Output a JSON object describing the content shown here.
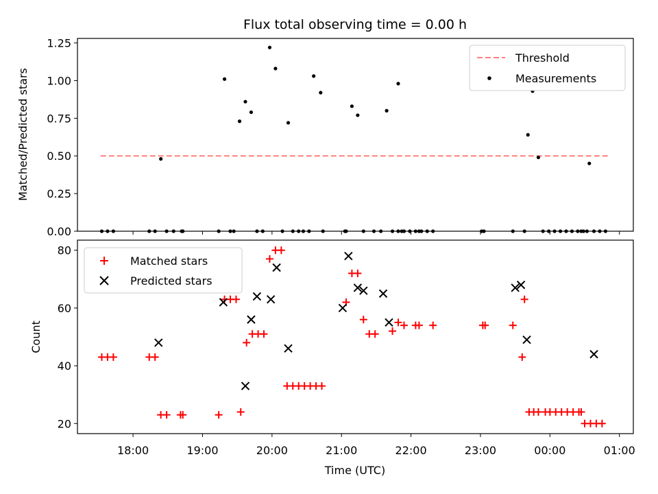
{
  "chart_data": [
    {
      "type": "scatter",
      "title": "Flux total observing time = 0.00 h",
      "xlabel": "",
      "ylabel": "Matched/Predicted stars",
      "xlim": [
        "17:12",
        "01:12"
      ],
      "ylim": [
        0,
        1.28
      ],
      "yticks": [
        "0.00",
        "0.25",
        "0.50",
        "0.75",
        "1.00",
        "1.25"
      ],
      "legend_position": "top-right",
      "series": [
        {
          "name": "Threshold",
          "style": "dashed-line",
          "color": "#ff7f7f",
          "x": [
            "17:32",
            "00:50"
          ],
          "y": [
            0.5,
            0.5
          ]
        },
        {
          "name": "Measurements",
          "style": "point",
          "color": "#000000",
          "x": [
            "17:33",
            "17:38",
            "17:43",
            "18:14",
            "18:19",
            "18:24",
            "18:29",
            "18:35",
            "18:42",
            "18:43",
            "19:14",
            "19:19",
            "19:24",
            "19:27",
            "19:32",
            "19:37",
            "19:42",
            "19:47",
            "19:52",
            "19:58",
            "20:03",
            "20:09",
            "20:14",
            "20:18",
            "20:23",
            "20:27",
            "20:32",
            "20:36",
            "20:42",
            "20:44",
            "21:03",
            "21:04",
            "21:09",
            "21:14",
            "21:19",
            "21:28",
            "21:34",
            "21:39",
            "21:44",
            "21:49",
            "21:49",
            "21:52",
            "21:54",
            "21:59",
            "22:04",
            "22:07",
            "22:09",
            "22:14",
            "22:19",
            "23:01",
            "23:03",
            "23:28",
            "23:38",
            "23:41",
            "23:45",
            "23:50",
            "23:54",
            "23:59",
            "00:04",
            "00:09",
            "00:14",
            "00:19",
            "00:24",
            "00:27",
            "00:29",
            "00:32",
            "00:34",
            "00:38",
            "00:43",
            "00:48"
          ],
          "y": [
            0,
            0,
            0,
            0,
            0,
            0.48,
            0,
            0,
            0,
            0,
            0,
            1.01,
            0,
            0,
            0.73,
            0.86,
            0.79,
            0,
            0,
            1.22,
            1.08,
            0,
            0.72,
            0,
            0,
            0,
            0,
            1.03,
            0.92,
            0,
            0,
            0,
            0.83,
            0.77,
            0,
            0,
            0,
            0.8,
            0,
            0.98,
            0,
            0,
            0,
            0,
            0,
            0,
            0,
            0,
            0,
            0,
            0,
            0,
            0,
            0.64,
            0.93,
            0.49,
            0,
            0,
            0,
            0,
            0,
            0,
            0,
            0,
            0,
            0,
            0.45,
            0,
            0,
            0
          ]
        }
      ]
    },
    {
      "type": "scatter",
      "title": "",
      "xlabel": "Time (UTC)",
      "ylabel": "Count",
      "xlim": [
        "17:12",
        "01:12"
      ],
      "ylim": [
        16.5,
        83.5
      ],
      "xticks": [
        "18:00",
        "19:00",
        "20:00",
        "21:00",
        "22:00",
        "23:00",
        "00:00",
        "01:00"
      ],
      "yticks": [
        "20",
        "40",
        "60",
        "80"
      ],
      "legend_position": "top-left",
      "series": [
        {
          "name": "Matched stars",
          "style": "plus-marker",
          "color": "#ff0000",
          "x": [
            "17:33",
            "17:38",
            "17:43",
            "18:14",
            "18:19",
            "18:24",
            "18:29",
            "18:41",
            "18:43",
            "19:14",
            "19:19",
            "19:24",
            "19:29",
            "19:33",
            "19:38",
            "19:43",
            "19:48",
            "19:53",
            "19:58",
            "20:03",
            "20:08",
            "20:13",
            "20:18",
            "20:23",
            "20:28",
            "20:33",
            "20:38",
            "20:43",
            "21:04",
            "21:09",
            "21:14",
            "21:19",
            "21:24",
            "21:29",
            "21:44",
            "21:49",
            "21:54",
            "22:04",
            "22:07",
            "22:19",
            "23:02",
            "23:04",
            "23:28",
            "23:36",
            "23:38",
            "23:42",
            "23:46",
            "23:50",
            "23:56",
            "00:00",
            "00:05",
            "00:10",
            "00:15",
            "00:20",
            "00:25",
            "00:27",
            "00:30",
            "00:35",
            "00:40",
            "00:45"
          ],
          "y": [
            43,
            43,
            43,
            43,
            43,
            23,
            23,
            23,
            23,
            23,
            63,
            63,
            63,
            24,
            48,
            51,
            51,
            51,
            77,
            80,
            80,
            33,
            33,
            33,
            33,
            33,
            33,
            33,
            62,
            72,
            72,
            56,
            51,
            51,
            52,
            55,
            54,
            54,
            54,
            54,
            54,
            54,
            54,
            43,
            63,
            24,
            24,
            24,
            24,
            24,
            24,
            24,
            24,
            24,
            24,
            24,
            20,
            20,
            20,
            20
          ]
        },
        {
          "name": "Predicted stars",
          "style": "x-marker",
          "color": "#000000",
          "x": [
            "18:22",
            "19:18",
            "19:37",
            "19:42",
            "19:47",
            "19:59",
            "20:04",
            "20:14",
            "21:01",
            "21:06",
            "21:14",
            "21:19",
            "21:36",
            "21:41",
            "23:30",
            "23:35",
            "23:40",
            "00:38"
          ],
          "y": [
            48,
            62,
            33,
            56,
            64,
            63,
            74,
            46,
            60,
            78,
            67,
            66,
            65,
            55,
            67,
            68,
            49,
            44
          ]
        }
      ]
    }
  ]
}
